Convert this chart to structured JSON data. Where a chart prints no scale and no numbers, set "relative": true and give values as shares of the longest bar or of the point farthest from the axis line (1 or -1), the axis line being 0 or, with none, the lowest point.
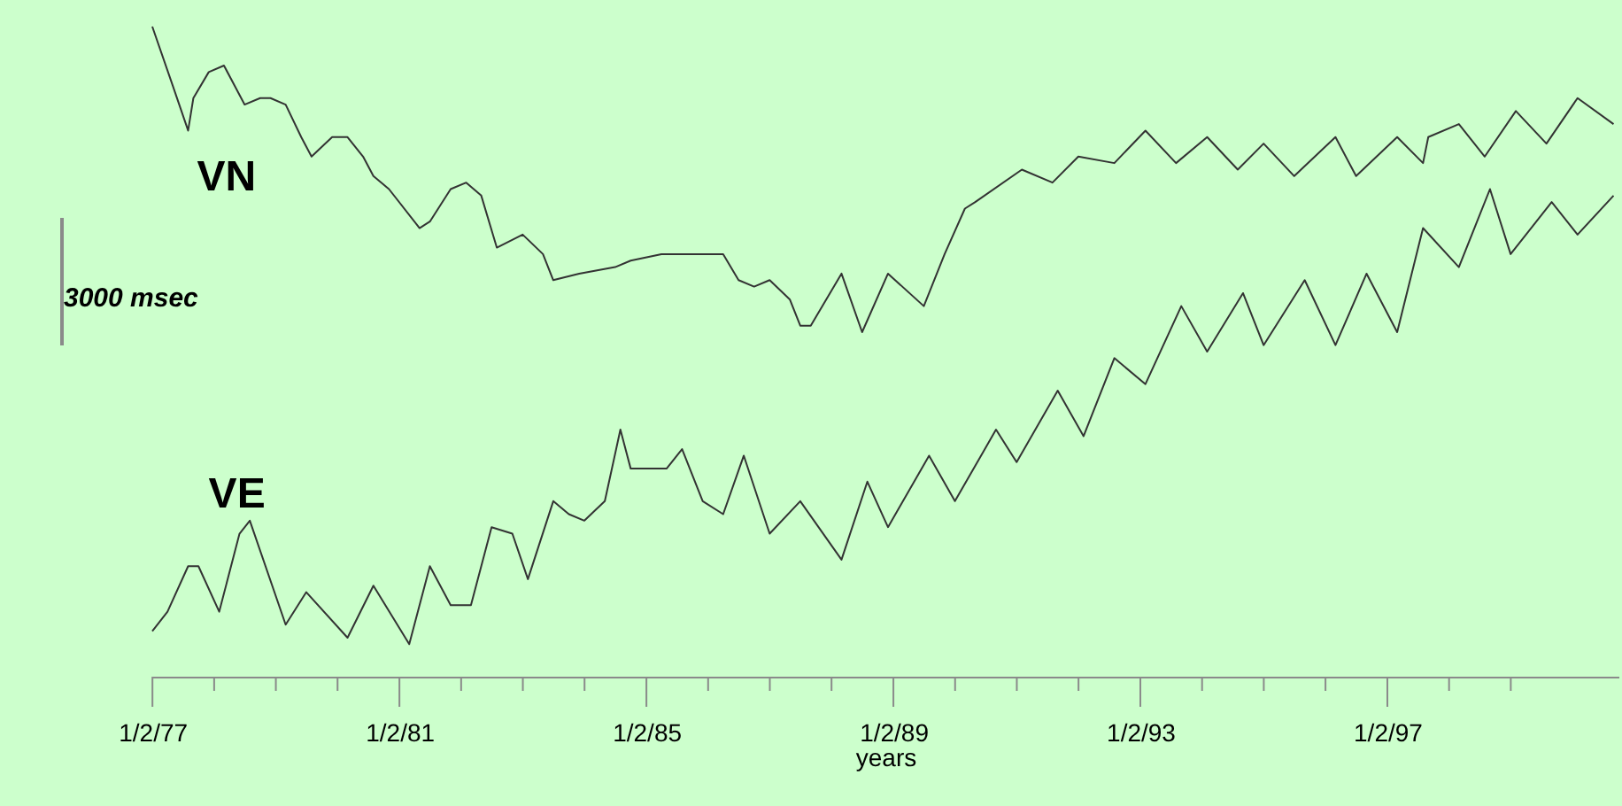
{
  "chart_data": {
    "type": "line",
    "relative": true,
    "xlabel": "years",
    "tick_labels": "x",
    "xlim": [
      "1977-01-01",
      "2000-09-30"
    ],
    "xticks": [
      {
        "value": "1977-01-02",
        "label": "1/2/77"
      },
      {
        "value": "1978-01-02",
        "label": null
      },
      {
        "value": "1979-01-02",
        "label": null
      },
      {
        "value": "1980-01-02",
        "label": null
      },
      {
        "value": "1981-01-02",
        "label": "1/2/81"
      },
      {
        "value": "1982-01-02",
        "label": null
      },
      {
        "value": "1983-01-02",
        "label": null
      },
      {
        "value": "1984-01-02",
        "label": null
      },
      {
        "value": "1985-01-02",
        "label": "1/2/85"
      },
      {
        "value": "1986-01-02",
        "label": null
      },
      {
        "value": "1987-01-02",
        "label": null
      },
      {
        "value": "1988-01-02",
        "label": null
      },
      {
        "value": "1989-01-02",
        "label": "1/2/89"
      },
      {
        "value": "1990-01-02",
        "label": null
      },
      {
        "value": "1991-01-02",
        "label": null
      },
      {
        "value": "1992-01-02",
        "label": null
      },
      {
        "value": "1993-01-02",
        "label": "1/2/93"
      },
      {
        "value": "1994-01-02",
        "label": null
      },
      {
        "value": "1995-01-02",
        "label": null
      },
      {
        "value": "1996-01-02",
        "label": null
      },
      {
        "value": "1997-01-02",
        "label": "1/2/97"
      },
      {
        "value": "1998-01-02",
        "label": null
      },
      {
        "value": "1999-01-02",
        "label": null
      }
    ],
    "annotations": [
      "3000 msec"
    ],
    "series": [
      {
        "name": "VN",
        "color": "#333333",
        "x": [
          "1977-01",
          "1977-05",
          "1977-08",
          "1977-09",
          "1977-12",
          "1978-03",
          "1978-05",
          "1978-07",
          "1978-10",
          "1978-12",
          "1979-03",
          "1979-06",
          "1979-08",
          "1979-12",
          "1980-03",
          "1980-06",
          "1980-08",
          "1980-11",
          "1981-05",
          "1981-07",
          "1981-11",
          "1982-02",
          "1982-05",
          "1982-08",
          "1983-01",
          "1983-05",
          "1983-07",
          "1983-12",
          "1984-07",
          "1984-10",
          "1985-04",
          "1986-03",
          "1986-04",
          "1986-07",
          "1986-10",
          "1987-01",
          "1987-05",
          "1987-07",
          "1987-09",
          "1988-03",
          "1988-07",
          "1988-12",
          "1989-07",
          "1989-11",
          "1990-03",
          "1990-05",
          "1991-02",
          "1991-08",
          "1992-01",
          "1992-08",
          "1993-02",
          "1993-08",
          "1994-02",
          "1994-08",
          "1995-01",
          "1995-07",
          "1996-03",
          "1996-07",
          "1997-03",
          "1997-08",
          "1997-09",
          "1998-03",
          "1998-08",
          "1999-02",
          "1999-08",
          "2000-02",
          "2000-09"
        ],
        "values": [
          1.0,
          0.91,
          0.84,
          0.89,
          0.93,
          0.94,
          0.91,
          0.88,
          0.89,
          0.89,
          0.88,
          0.83,
          0.8,
          0.83,
          0.83,
          0.8,
          0.77,
          0.75,
          0.69,
          0.7,
          0.75,
          0.76,
          0.74,
          0.66,
          0.68,
          0.65,
          0.61,
          0.62,
          0.63,
          0.64,
          0.65,
          0.65,
          0.65,
          0.61,
          0.6,
          0.61,
          0.58,
          0.54,
          0.54,
          0.62,
          0.53,
          0.62,
          0.57,
          0.65,
          0.72,
          0.73,
          0.78,
          0.76,
          0.8,
          0.79,
          0.84,
          0.79,
          0.83,
          0.78,
          0.82,
          0.77,
          0.83,
          0.77,
          0.83,
          0.79,
          0.83,
          0.85,
          0.8,
          0.87,
          0.82,
          0.89,
          0.85
        ]
      },
      {
        "name": "VE",
        "color": "#333333",
        "x": [
          "1977-01",
          "1977-04",
          "1977-08",
          "1977-10",
          "1978-02",
          "1978-06",
          "1978-08",
          "1979-03",
          "1979-07",
          "1980-03",
          "1980-08",
          "1981-03",
          "1981-07",
          "1981-11",
          "1982-03",
          "1982-07",
          "1982-11",
          "1983-02",
          "1983-07",
          "1983-10",
          "1984-01",
          "1984-05",
          "1984-08",
          "1984-10",
          "1985-05",
          "1985-08",
          "1985-12",
          "1986-04",
          "1986-08",
          "1987-01",
          "1987-07",
          "1988-03",
          "1988-08",
          "1988-12",
          "1989-08",
          "1990-01",
          "1990-09",
          "1991-01",
          "1991-09",
          "1992-02",
          "1992-08",
          "1993-02",
          "1993-09",
          "1994-02",
          "1994-09",
          "1995-01",
          "1995-09",
          "1996-03",
          "1996-09",
          "1997-03",
          "1997-08",
          "1998-03",
          "1998-09",
          "1999-01",
          "1999-09",
          "2000-02",
          "2000-09"
        ],
        "values": [
          0.07,
          0.1,
          0.17,
          0.17,
          0.1,
          0.22,
          0.24,
          0.08,
          0.13,
          0.06,
          0.14,
          0.05,
          0.17,
          0.11,
          0.11,
          0.23,
          0.22,
          0.15,
          0.27,
          0.25,
          0.24,
          0.27,
          0.38,
          0.32,
          0.32,
          0.35,
          0.27,
          0.25,
          0.34,
          0.22,
          0.27,
          0.18,
          0.3,
          0.23,
          0.34,
          0.27,
          0.38,
          0.33,
          0.44,
          0.37,
          0.49,
          0.45,
          0.57,
          0.5,
          0.59,
          0.51,
          0.61,
          0.51,
          0.62,
          0.53,
          0.69,
          0.63,
          0.75,
          0.65,
          0.73,
          0.68,
          0.74
        ]
      }
    ]
  }
}
